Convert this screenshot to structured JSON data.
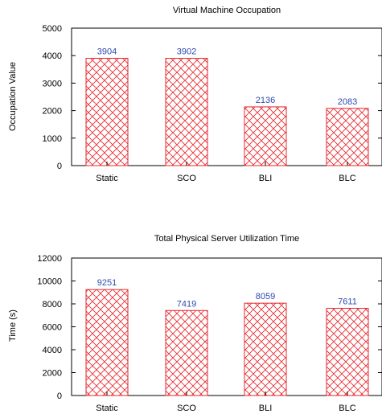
{
  "chart_data": [
    {
      "type": "bar",
      "title": "Virtual Machine Occupation",
      "xlabel": "",
      "ylabel": "Occupation Value",
      "categories": [
        "Static",
        "SCO",
        "BLI",
        "BLC"
      ],
      "values": [
        3904,
        3902,
        2136,
        2083
      ],
      "ylim": [
        0,
        5000
      ],
      "yticks": [
        0,
        1000,
        2000,
        3000,
        4000,
        5000
      ],
      "bar_color": "#e8252b",
      "label_color": "#2e4bb0",
      "grid": false
    },
    {
      "type": "bar",
      "title": "Total Physical Server Utilization Time",
      "xlabel": "",
      "ylabel": "Time (s)",
      "categories": [
        "Static",
        "SCO",
        "BLI",
        "BLC"
      ],
      "values": [
        9251,
        7419,
        8059,
        7611
      ],
      "ylim": [
        0,
        12000
      ],
      "yticks": [
        0,
        2000,
        4000,
        6000,
        8000,
        10000,
        12000
      ],
      "bar_color": "#e8252b",
      "label_color": "#2e4bb0",
      "grid": false
    }
  ]
}
